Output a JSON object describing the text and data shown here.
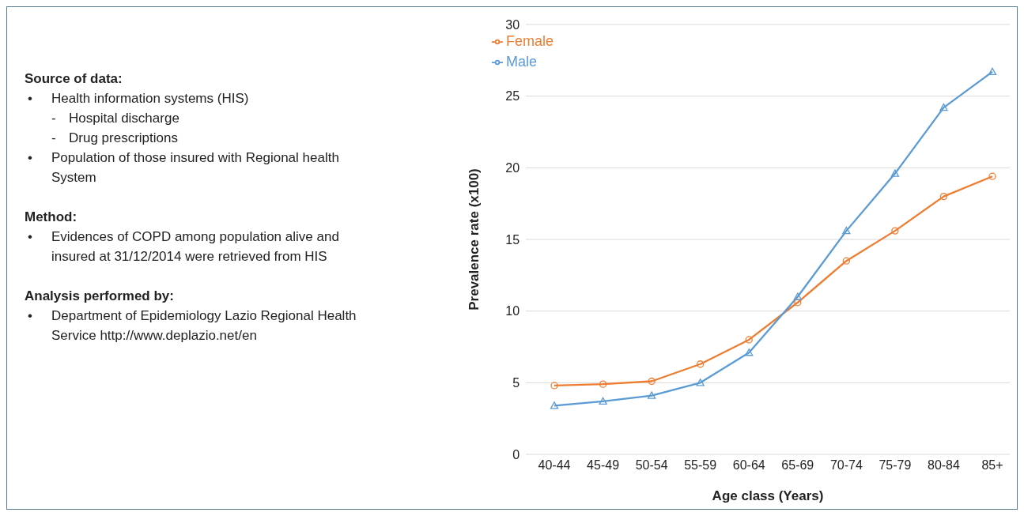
{
  "chart_data": {
    "type": "line",
    "xlabel": "Age class (Years)",
    "ylabel": "Prevalence rate (x100)",
    "categories": [
      "40-44",
      "45-49",
      "50-54",
      "55-59",
      "60-64",
      "65-69",
      "70-74",
      "75-79",
      "80-84",
      "85+"
    ],
    "series": [
      {
        "name": "Female",
        "color": "#ed7d31",
        "marker": "circle",
        "values": [
          4.8,
          4.9,
          5.1,
          6.3,
          8.0,
          10.6,
          13.5,
          15.6,
          18.0,
          19.4
        ]
      },
      {
        "name": "Male",
        "color": "#5b9bd5",
        "marker": "triangle",
        "values": [
          3.4,
          3.7,
          4.1,
          5.0,
          7.1,
          11.0,
          15.6,
          19.6,
          24.2,
          26.7
        ]
      }
    ],
    "ylim": [
      0,
      30
    ],
    "yticks": [
      0,
      5,
      10,
      15,
      20,
      25,
      30
    ],
    "grid": "y",
    "legend": "top left",
    "line_style": "solid",
    "annotations": [
      "Source of data:",
      "• Health information systems (HIS)",
      "- Hospital discharge",
      "- Drug prescriptions",
      "• Population of those insured with Regional health System",
      "Method:",
      "• Evidences of COPD among population alive and insured at 31/12/2014 were retrieved from HIS",
      "Analysis performed by:",
      "• Department of Epidemiology Lazio Regional Health Service http://www.deplazio.net/en"
    ]
  }
}
